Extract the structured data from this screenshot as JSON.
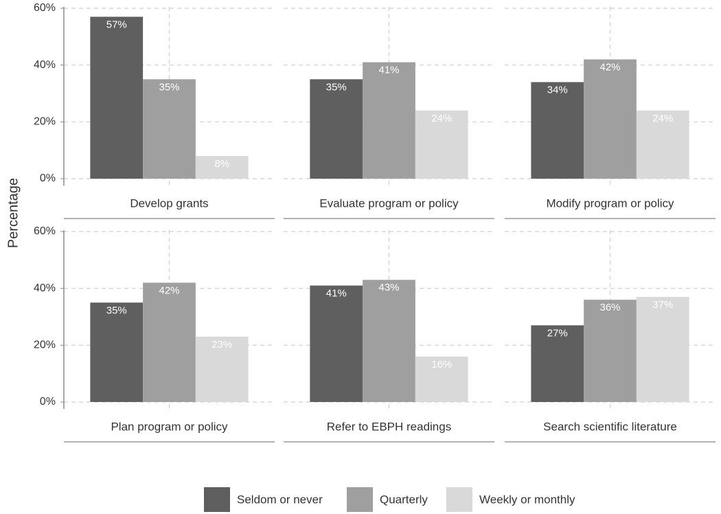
{
  "chart_data": {
    "type": "bar",
    "y_label": "Percentage",
    "facets": [
      "Develop grants",
      "Evaluate program or policy",
      "Modify program or policy",
      "Plan program or policy",
      "Refer to EBPH readings",
      "Search scientific literature"
    ],
    "series": [
      {
        "name": "Seldom or never",
        "color": "#5f5f5f",
        "values": [
          57,
          35,
          34,
          35,
          41,
          27
        ],
        "value_labels": [
          "57%",
          "35%",
          "34%",
          "35%",
          "41%",
          "27%"
        ]
      },
      {
        "name": "Quarterly",
        "color": "#9f9f9f",
        "values": [
          35,
          41,
          42,
          42,
          43,
          36
        ],
        "value_labels": [
          "35%",
          "41%",
          "42%",
          "42%",
          "43%",
          "36%"
        ]
      },
      {
        "name": "Weekly or monthly",
        "color": "#d9d9d9",
        "values": [
          8,
          24,
          24,
          23,
          16,
          37
        ],
        "value_labels": [
          "8%",
          "24%",
          "24%",
          "23%",
          "16%",
          "37%"
        ]
      }
    ],
    "ylim": [
      0,
      60
    ],
    "yticks": [
      {
        "value": 0,
        "label": "0%"
      },
      {
        "value": 20,
        "label": "20%"
      },
      {
        "value": 40,
        "label": "40%"
      },
      {
        "value": 60,
        "label": "60%"
      }
    ],
    "grid": true,
    "legend": "bottom"
  }
}
